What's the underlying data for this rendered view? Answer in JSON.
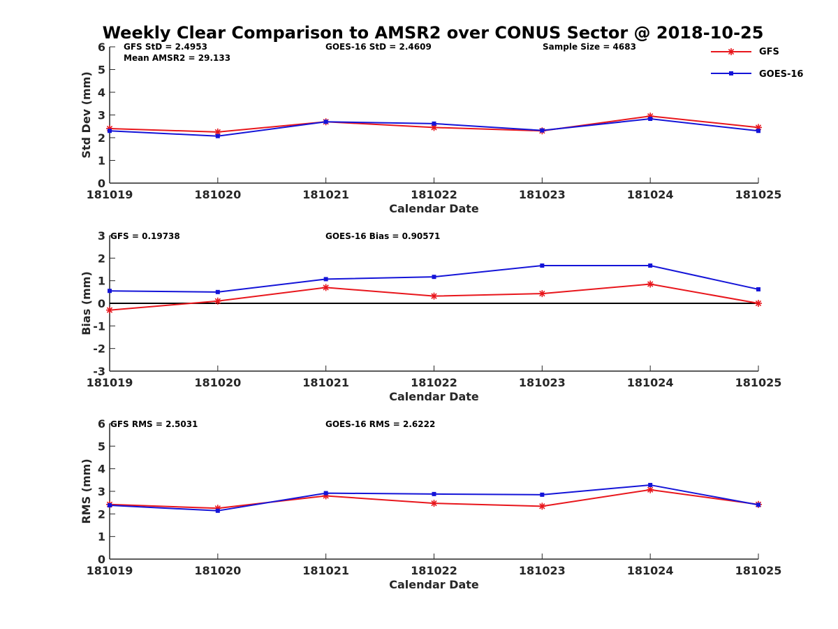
{
  "title": "Weekly Clear Comparison to AMSR2 over CONUS Sector @ 2018-10-25",
  "colors": {
    "GFS": "#e8161c",
    "GOES-16": "#1414d8",
    "axis": "#262626",
    "zero_line": "#000000"
  },
  "legend": {
    "placement": "top-right",
    "entries": [
      "GFS",
      "GOES-16"
    ],
    "markers": [
      "asterisk",
      "square"
    ]
  },
  "chart_data": [
    {
      "type": "line",
      "categories": [
        "181019",
        "181020",
        "181021",
        "181022",
        "181023",
        "181024",
        "181025"
      ],
      "series": [
        {
          "name": "GFS",
          "values": [
            2.4,
            2.25,
            2.7,
            2.45,
            2.3,
            2.95,
            2.45
          ]
        },
        {
          "name": "GOES-16",
          "values": [
            2.3,
            2.07,
            2.7,
            2.62,
            2.32,
            2.83,
            2.3
          ]
        }
      ],
      "xlabel": "Calendar Date",
      "ylabel": "Std Dev (mm)",
      "ylim": [
        0,
        6
      ],
      "yticks": [
        "0",
        "1",
        "2",
        "3",
        "4",
        "5",
        "6"
      ],
      "zero_line": false,
      "annotations": [
        "GFS StD = 2.4953",
        "Mean AMSR2 = 29.133",
        "GOES-16 StD = 2.4609",
        "Sample Size = 4683"
      ]
    },
    {
      "type": "line",
      "categories": [
        "181019",
        "181020",
        "181021",
        "181022",
        "181023",
        "181024",
        "181025"
      ],
      "series": [
        {
          "name": "GFS",
          "values": [
            -0.3,
            0.1,
            0.7,
            0.32,
            0.43,
            0.85,
            0.0
          ]
        },
        {
          "name": "GOES-16",
          "values": [
            0.55,
            0.5,
            1.07,
            1.17,
            1.67,
            1.67,
            0.62
          ]
        }
      ],
      "xlabel": "Calendar Date",
      "ylabel": "Bias (mm)",
      "ylim": [
        -3,
        3
      ],
      "yticks": [
        "-3",
        "-2",
        "-1",
        "0",
        "1",
        "2",
        "3"
      ],
      "zero_line": true,
      "annotations": [
        "GFS = 0.19738",
        "GOES-16 Bias  = 0.90571"
      ]
    },
    {
      "type": "line",
      "categories": [
        "181019",
        "181020",
        "181021",
        "181022",
        "181023",
        "181024",
        "181025"
      ],
      "series": [
        {
          "name": "GFS",
          "values": [
            2.42,
            2.25,
            2.8,
            2.47,
            2.34,
            3.07,
            2.42
          ]
        },
        {
          "name": "GOES-16",
          "values": [
            2.38,
            2.14,
            2.92,
            2.88,
            2.85,
            3.28,
            2.4
          ]
        }
      ],
      "xlabel": "Calendar Date",
      "ylabel": "RMS (mm)",
      "ylim": [
        0,
        6
      ],
      "yticks": [
        "0",
        "1",
        "2",
        "3",
        "4",
        "5",
        "6"
      ],
      "zero_line": false,
      "annotations": [
        "GFS RMS = 2.5031",
        "GOES-16 RMS = 2.6222"
      ]
    }
  ]
}
